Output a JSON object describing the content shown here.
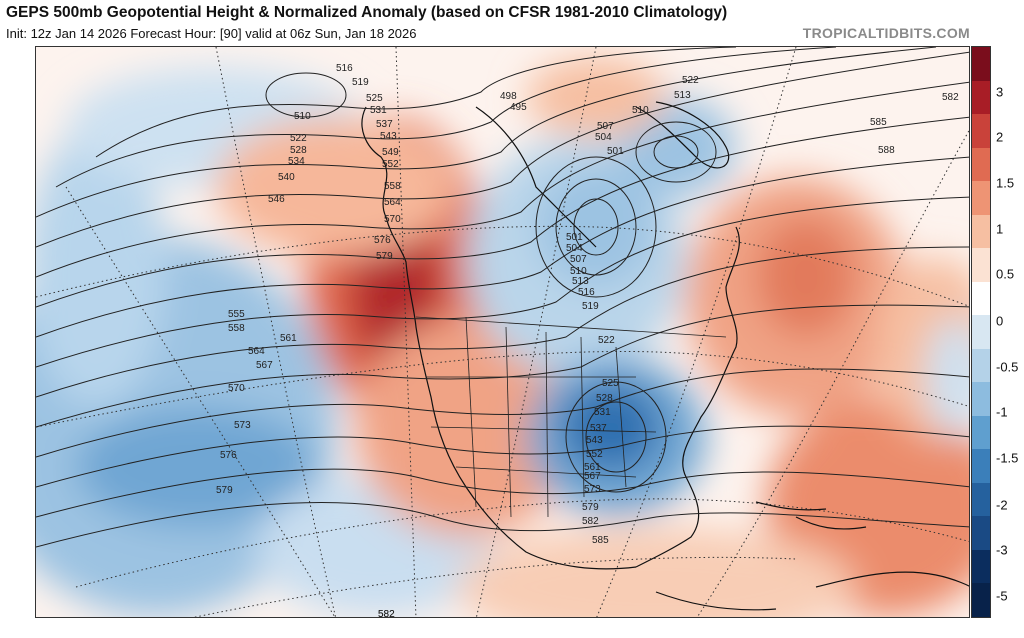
{
  "header": {
    "title": "GEPS 500mb Geopotential Height & Normalized Anomaly (based on CFSR 1981-2010 Climatology)",
    "subtitle": "Init: 12z Jan 14 2026   Forecast Hour: [90]   valid at 06z Sun, Jan 18 2026",
    "credit": "TROPICALTIDBITS.COM"
  },
  "colorbar": {
    "labels": [
      "3",
      "2",
      "1.5",
      "1",
      "0.5",
      "0",
      "-0.5",
      "-1",
      "-1.5",
      "-2",
      "-3",
      "-5"
    ],
    "colors": [
      "#7a0d1c",
      "#a81d26",
      "#c9423a",
      "#e06b52",
      "#ee9474",
      "#f6bfa2",
      "#fbe2d3",
      "#ffffff",
      "#d8e7f2",
      "#b4d2e8",
      "#8dbcdf",
      "#5f9fcf",
      "#3b7fba",
      "#25619e",
      "#1a4a84",
      "#0b2d5e",
      "#08224a"
    ]
  },
  "contour_labels": [
    "498",
    "495",
    "501",
    "504",
    "507",
    "510",
    "513",
    "516",
    "519",
    "522",
    "525",
    "528",
    "531",
    "534",
    "537",
    "540",
    "543",
    "546",
    "549",
    "552",
    "555",
    "558",
    "561",
    "564",
    "567",
    "570",
    "573",
    "576",
    "579",
    "582",
    "585",
    "588"
  ],
  "map_labels": [
    {
      "text": "516"
    },
    {
      "text": "519"
    },
    {
      "text": "525"
    },
    {
      "text": "531"
    },
    {
      "text": "537"
    },
    {
      "text": "543"
    },
    {
      "text": "549"
    },
    {
      "text": "552"
    },
    {
      "text": "558"
    },
    {
      "text": "564"
    },
    {
      "text": "570"
    },
    {
      "text": "576"
    },
    {
      "text": "579"
    },
    {
      "text": "510"
    },
    {
      "text": "522"
    },
    {
      "text": "528"
    },
    {
      "text": "534"
    },
    {
      "text": "540"
    },
    {
      "text": "546"
    },
    {
      "text": "555"
    },
    {
      "text": "558"
    },
    {
      "text": "561"
    },
    {
      "text": "564"
    },
    {
      "text": "567"
    },
    {
      "text": "570"
    },
    {
      "text": "573"
    },
    {
      "text": "576"
    },
    {
      "text": "579"
    },
    {
      "text": "582"
    },
    {
      "text": "498"
    },
    {
      "text": "495"
    },
    {
      "text": "507"
    },
    {
      "text": "504"
    },
    {
      "text": "501"
    },
    {
      "text": "510"
    },
    {
      "text": "522"
    },
    {
      "text": "513"
    },
    {
      "text": "582"
    },
    {
      "text": "585"
    },
    {
      "text": "588"
    },
    {
      "text": "501"
    },
    {
      "text": "504"
    },
    {
      "text": "507"
    },
    {
      "text": "510"
    },
    {
      "text": "513"
    },
    {
      "text": "516"
    },
    {
      "text": "519"
    },
    {
      "text": "522"
    },
    {
      "text": "525"
    },
    {
      "text": "528"
    },
    {
      "text": "531"
    },
    {
      "text": "537"
    },
    {
      "text": "543"
    },
    {
      "text": "552"
    },
    {
      "text": "561"
    },
    {
      "text": "567"
    },
    {
      "text": "573"
    },
    {
      "text": "579"
    },
    {
      "text": "582"
    },
    {
      "text": "585"
    },
    {
      "text": "582"
    }
  ]
}
